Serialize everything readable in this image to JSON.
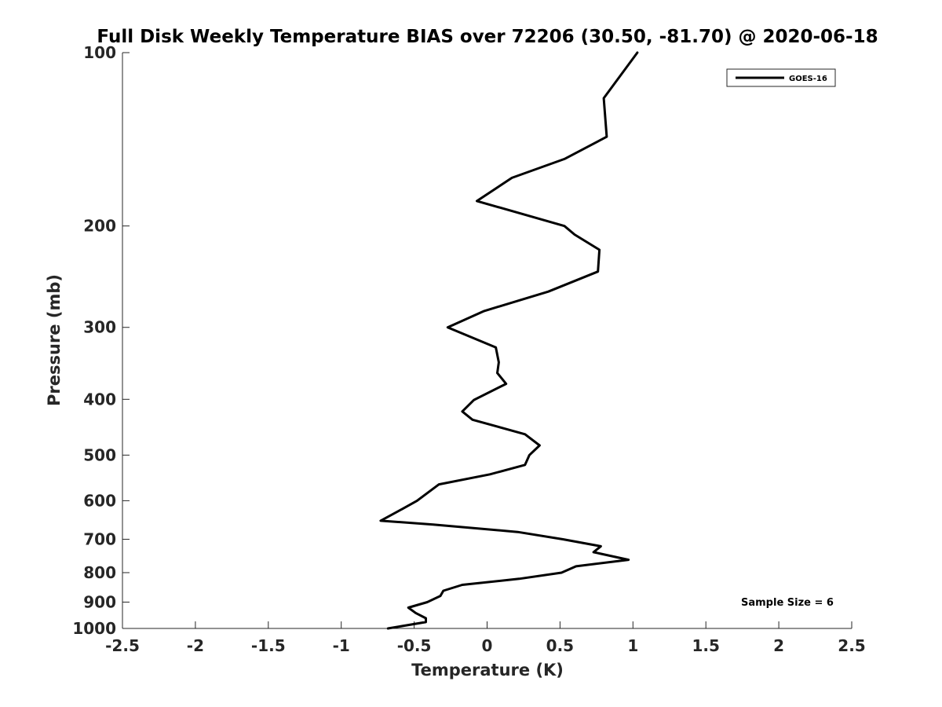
{
  "chart_data": {
    "type": "line",
    "title": "Full Disk Weekly Temperature BIAS over 72206 (30.50, -81.70) @ 2020-06-18",
    "xlabel": "Temperature (K)",
    "ylabel": "Pressure (mb)",
    "xlim": [
      -2.5,
      2.5
    ],
    "ylim": [
      100,
      1000
    ],
    "y_scale": "log",
    "y_reversed": true,
    "grid": false,
    "legend_position": "top-right",
    "x_ticks": [
      -2.5,
      -2,
      -1.5,
      -1,
      -0.5,
      0,
      0.5,
      1,
      1.5,
      2,
      2.5
    ],
    "x_tick_labels": [
      "-2.5",
      "-2",
      "-1.5",
      "-1",
      "-0.5",
      "0",
      "0.5",
      "1",
      "1.5",
      "2",
      "2.5"
    ],
    "y_ticks": [
      100,
      200,
      300,
      400,
      500,
      600,
      700,
      800,
      900,
      1000
    ],
    "y_tick_labels": [
      "100",
      "200",
      "300",
      "400",
      "500",
      "600",
      "700",
      "800",
      "900",
      "1000"
    ],
    "annotation": "Sample Size = 6",
    "series": [
      {
        "name": "GOES-16",
        "color": "#000000",
        "points": [
          {
            "x": 1.03,
            "y": 100
          },
          {
            "x": 0.8,
            "y": 120
          },
          {
            "x": 0.82,
            "y": 140
          },
          {
            "x": 0.53,
            "y": 153
          },
          {
            "x": 0.17,
            "y": 165
          },
          {
            "x": -0.07,
            "y": 181
          },
          {
            "x": 0.53,
            "y": 200
          },
          {
            "x": 0.6,
            "y": 207
          },
          {
            "x": 0.77,
            "y": 220
          },
          {
            "x": 0.76,
            "y": 240
          },
          {
            "x": 0.42,
            "y": 260
          },
          {
            "x": -0.02,
            "y": 281
          },
          {
            "x": -0.27,
            "y": 300
          },
          {
            "x": 0.06,
            "y": 325
          },
          {
            "x": 0.08,
            "y": 345
          },
          {
            "x": 0.07,
            "y": 360
          },
          {
            "x": 0.13,
            "y": 376
          },
          {
            "x": -0.09,
            "y": 401
          },
          {
            "x": -0.17,
            "y": 420
          },
          {
            "x": -0.1,
            "y": 434
          },
          {
            "x": 0.26,
            "y": 460
          },
          {
            "x": 0.36,
            "y": 481
          },
          {
            "x": 0.29,
            "y": 500
          },
          {
            "x": 0.26,
            "y": 520
          },
          {
            "x": 0.02,
            "y": 540
          },
          {
            "x": -0.33,
            "y": 562
          },
          {
            "x": -0.48,
            "y": 600
          },
          {
            "x": -0.58,
            "y": 620
          },
          {
            "x": -0.73,
            "y": 650
          },
          {
            "x": -0.37,
            "y": 660
          },
          {
            "x": 0.21,
            "y": 680
          },
          {
            "x": 0.52,
            "y": 700
          },
          {
            "x": 0.78,
            "y": 720
          },
          {
            "x": 0.73,
            "y": 737
          },
          {
            "x": 0.97,
            "y": 760
          },
          {
            "x": 0.61,
            "y": 780
          },
          {
            "x": 0.51,
            "y": 800
          },
          {
            "x": 0.22,
            "y": 820
          },
          {
            "x": -0.17,
            "y": 840
          },
          {
            "x": -0.3,
            "y": 860
          },
          {
            "x": -0.32,
            "y": 878
          },
          {
            "x": -0.41,
            "y": 900
          },
          {
            "x": -0.54,
            "y": 920
          },
          {
            "x": -0.49,
            "y": 940
          },
          {
            "x": -0.42,
            "y": 960
          },
          {
            "x": -0.42,
            "y": 975
          },
          {
            "x": -0.68,
            "y": 1000
          }
        ]
      }
    ]
  }
}
